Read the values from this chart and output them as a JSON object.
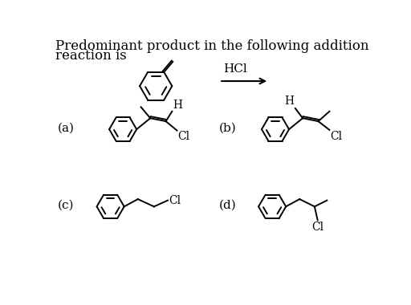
{
  "title_line1": "Predominant product in the following addition",
  "title_line2": "reaction is",
  "hcl_label": "HCl",
  "labels": [
    "(a)",
    "(b)",
    "(c)",
    "(d)"
  ],
  "bg_color": "#ffffff",
  "fg_color": "#000000",
  "font_family": "DejaVu Serif",
  "title_fontsize": 12,
  "label_fontsize": 11,
  "chem_fontsize": 10,
  "lw": 1.4
}
